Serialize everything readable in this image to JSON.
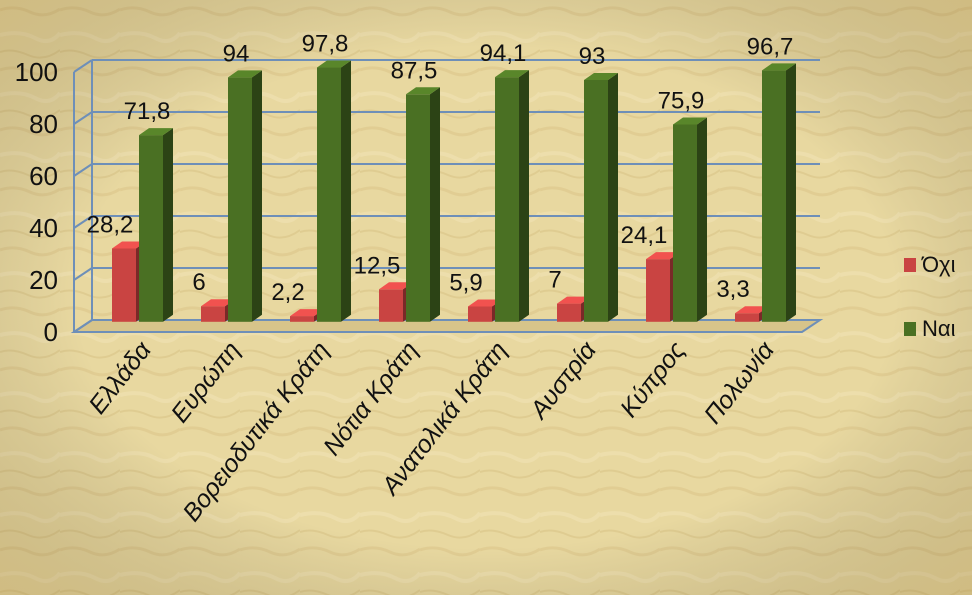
{
  "chart_data": {
    "type": "bar",
    "categories": [
      "Ελλάδα",
      "Ευρώπη",
      "Βορειοδυτικά Κράτη",
      "Νότια Κράτη",
      "Ανατολικά Κράτη",
      "Αυστρία",
      "Κύπρος",
      "Πολωνία"
    ],
    "series": [
      {
        "name": "Όχι",
        "values": [
          28.2,
          6,
          2.2,
          12.5,
          5.9,
          7,
          24.1,
          3.3
        ],
        "color": "#c94442"
      },
      {
        "name": "Ναι",
        "values": [
          71.8,
          94,
          97.8,
          87.5,
          94.1,
          93,
          75.9,
          96.7
        ],
        "color": "#4a7023"
      }
    ],
    "data_labels": [
      [
        "28,2",
        "6",
        "2,2",
        "12,5",
        "5,9",
        "7",
        "24,1",
        "3,3"
      ],
      [
        "71,8",
        "94",
        "97,8",
        "87,5",
        "94,1",
        "93",
        "75,9",
        "96,7"
      ]
    ],
    "y_ticks": [
      "0",
      "20",
      "40",
      "60",
      "80",
      "100"
    ],
    "ylim": [
      0,
      100
    ],
    "grid": true,
    "legend_position": "right",
    "style": "3d-clustered-column"
  }
}
